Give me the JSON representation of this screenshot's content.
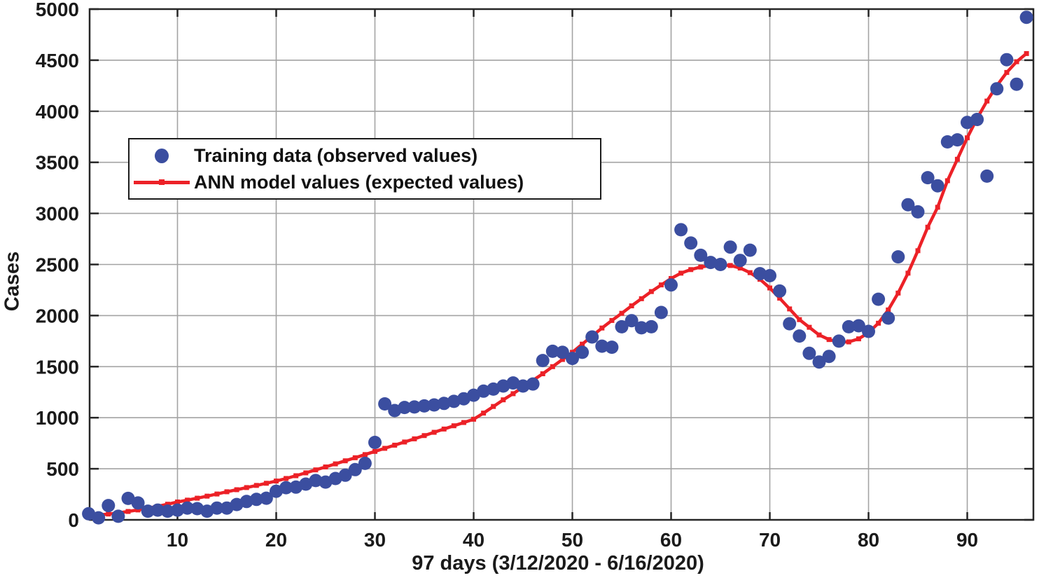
{
  "chart_data": {
    "type": "scatter+line",
    "title": "",
    "xlabel": "97 days (3/12/2020 - 6/16/2020)",
    "ylabel": "Cases",
    "xlim": [
      1.1,
      96.7
    ],
    "ylim": [
      0,
      5000
    ],
    "x_ticks": [
      10,
      20,
      30,
      40,
      50,
      60,
      70,
      80,
      90
    ],
    "y_ticks": [
      0,
      500,
      1000,
      1500,
      2000,
      2500,
      3000,
      3500,
      4000,
      4500,
      5000
    ],
    "grid": true,
    "legend_position": "upper-left-inside",
    "series": [
      {
        "name": "Training data (observed values)",
        "type": "scatter",
        "color": "#3B4EA0",
        "x": [
          1,
          2,
          3,
          4,
          5,
          6,
          7,
          8,
          9,
          10,
          11,
          12,
          13,
          14,
          15,
          16,
          17,
          18,
          19,
          20,
          21,
          22,
          23,
          24,
          25,
          26,
          27,
          28,
          29,
          30,
          31,
          32,
          33,
          34,
          35,
          36,
          37,
          38,
          39,
          40,
          41,
          42,
          43,
          44,
          45,
          46,
          47,
          48,
          49,
          50,
          51,
          52,
          53,
          54,
          55,
          56,
          57,
          58,
          59,
          60,
          61,
          62,
          63,
          64,
          65,
          66,
          67,
          68,
          69,
          70,
          71,
          72,
          73,
          74,
          75,
          76,
          77,
          78,
          79,
          80,
          81,
          82,
          83,
          84,
          85,
          86,
          87,
          88,
          89,
          90,
          91,
          92,
          93,
          94,
          95,
          96
        ],
        "y": [
          60,
          20,
          140,
          35,
          210,
          165,
          85,
          95,
          85,
          95,
          115,
          110,
          85,
          115,
          115,
          150,
          180,
          200,
          212,
          280,
          315,
          320,
          350,
          385,
          370,
          405,
          437,
          492,
          553,
          758,
          1135,
          1070,
          1100,
          1105,
          1115,
          1125,
          1140,
          1160,
          1185,
          1220,
          1260,
          1280,
          1310,
          1340,
          1310,
          1330,
          1560,
          1650,
          1640,
          1580,
          1640,
          1790,
          1700,
          1690,
          1890,
          1950,
          1880,
          1890,
          2030,
          2300,
          2840,
          2710,
          2590,
          2520,
          2500,
          2670,
          2540,
          2640,
          2410,
          2390,
          2240,
          1920,
          1800,
          1630,
          1545,
          1600,
          1750,
          1890,
          1900,
          1845,
          2160,
          1975,
          2575,
          3085,
          3015,
          3350,
          3270,
          3700,
          3720,
          3890,
          3920,
          3365,
          4220,
          4505,
          4265,
          4920
        ]
      },
      {
        "name": "ANN model values (expected values)",
        "type": "line",
        "marker": "square",
        "color": "#EC2127",
        "x": [
          1,
          2,
          3,
          4,
          5,
          6,
          7,
          8,
          9,
          10,
          11,
          12,
          13,
          14,
          15,
          16,
          17,
          18,
          19,
          20,
          21,
          22,
          23,
          24,
          25,
          26,
          27,
          28,
          29,
          30,
          31,
          32,
          33,
          34,
          35,
          36,
          37,
          38,
          39,
          40,
          41,
          42,
          43,
          44,
          45,
          46,
          47,
          48,
          49,
          50,
          51,
          52,
          53,
          54,
          55,
          56,
          57,
          58,
          59,
          60,
          61,
          62,
          63,
          64,
          65,
          66,
          67,
          68,
          69,
          70,
          71,
          72,
          73,
          74,
          75,
          76,
          77,
          78,
          79,
          80,
          81,
          82,
          83,
          84,
          85,
          86,
          87,
          88,
          89,
          90,
          91,
          92,
          93,
          94,
          95,
          96
        ],
        "y": [
          40,
          48,
          57,
          68,
          82,
          97,
          114,
          133,
          153,
          175,
          193,
          212,
          232,
          253,
          275,
          295,
          316,
          337,
          358,
          380,
          405,
          432,
          460,
          489,
          518,
          548,
          578,
          608,
          639,
          670,
          700,
          731,
          762,
          793,
          825,
          857,
          889,
          921,
          953,
          985,
          1045,
          1110,
          1175,
          1235,
          1300,
          1365,
          1430,
          1500,
          1570,
          1640,
          1720,
          1800,
          1878,
          1952,
          2022,
          2095,
          2165,
          2235,
          2300,
          2363,
          2415,
          2450,
          2475,
          2490,
          2497,
          2490,
          2465,
          2420,
          2355,
          2270,
          2170,
          2065,
          1960,
          1885,
          1810,
          1765,
          1740,
          1742,
          1772,
          1832,
          1925,
          2055,
          2220,
          2415,
          2635,
          2865,
          3060,
          3320,
          3530,
          3740,
          3930,
          4100,
          4250,
          4380,
          4485,
          4565
        ]
      }
    ]
  },
  "colors": {
    "background": "#ffffff",
    "grid": "#a3a3a3",
    "frame": "#262626",
    "text": "#1a1a1a",
    "scatter": "#3B4EA0",
    "line": "#EC2127"
  },
  "legend": {
    "dot_icon": "filled-circle",
    "line_icon": "line-with-square-marker"
  }
}
